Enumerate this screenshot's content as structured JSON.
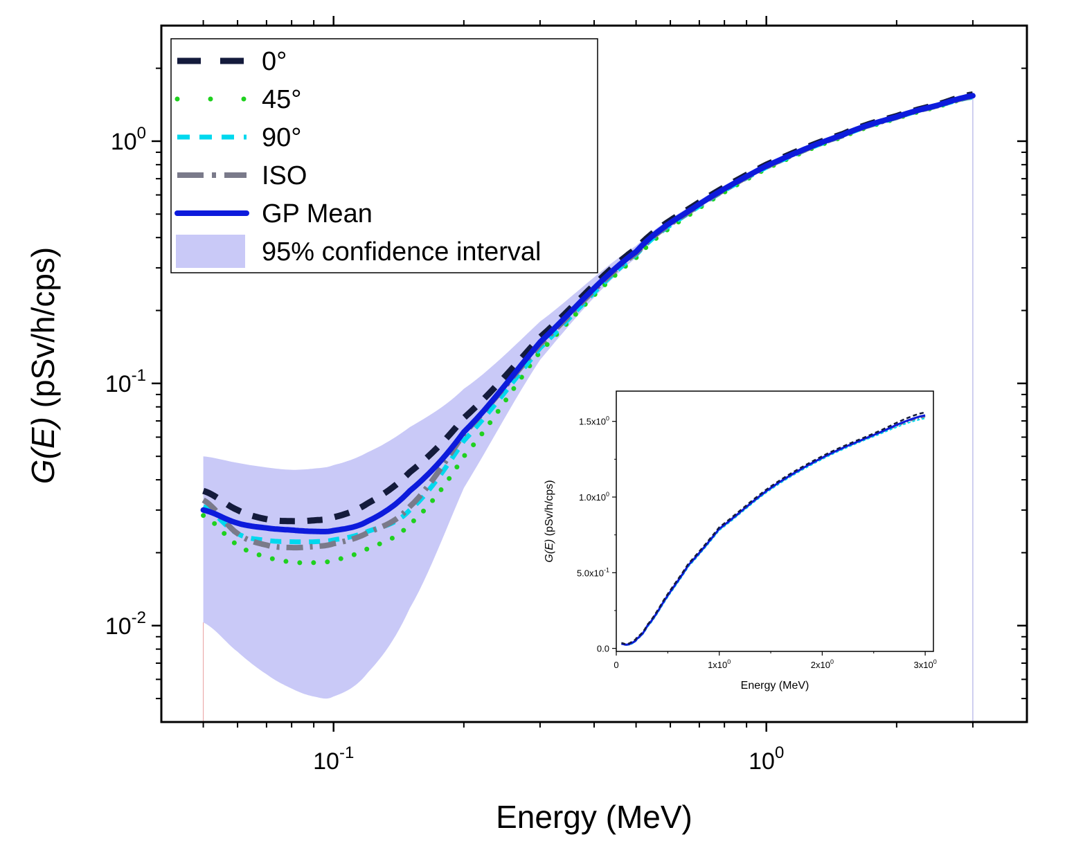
{
  "colors": {
    "deg0": "#141b3c",
    "deg45": "#1fd11f",
    "deg90": "#00d8ee",
    "iso": "#7a7a8a",
    "gp_mean": "#0d1bdc",
    "ci_fill": "#c9c9f7"
  },
  "chart_data": [
    {
      "type": "line",
      "xscale": "log",
      "yscale": "log",
      "xlabel": "Energy (MeV)",
      "ylabel": "G(E) (pSv/h/cps)",
      "ylabel_italic": "G(E)",
      "ylabel_unit": " (pSv/h/cps)",
      "xlim": [
        0.04,
        4.0
      ],
      "ylim": [
        0.004,
        3.0
      ],
      "x_major_ticks": [
        {
          "value": 0.1,
          "base": "10",
          "exp": "-1"
        },
        {
          "value": 1.0,
          "base": "10",
          "exp": "0"
        }
      ],
      "y_major_ticks": [
        {
          "value": 0.01,
          "base": "10",
          "exp": "-2"
        },
        {
          "value": 0.1,
          "base": "10",
          "exp": "-1"
        },
        {
          "value": 1.0,
          "base": "10",
          "exp": "0"
        }
      ],
      "legend_position": "top-left",
      "series": [
        {
          "key": "deg0",
          "name": "0°",
          "style": "dash",
          "x": [
            0.05,
            0.06,
            0.07,
            0.08,
            0.09,
            0.1,
            0.12,
            0.15,
            0.2,
            0.3,
            0.5,
            0.7,
            1.0,
            1.5,
            2.0,
            2.5,
            3.0
          ],
          "y": [
            0.036,
            0.03,
            0.0275,
            0.027,
            0.0272,
            0.028,
            0.032,
            0.043,
            0.072,
            0.155,
            0.36,
            0.56,
            0.8,
            1.07,
            1.27,
            1.42,
            1.56
          ]
        },
        {
          "key": "deg45",
          "name": "45°",
          "style": "dot",
          "x": [
            0.05,
            0.06,
            0.07,
            0.08,
            0.09,
            0.1,
            0.12,
            0.15,
            0.2,
            0.3,
            0.5,
            0.7,
            1.0,
            1.5,
            2.0,
            2.5,
            3.0
          ],
          "y": [
            0.0285,
            0.0215,
            0.0192,
            0.0183,
            0.0182,
            0.0186,
            0.0208,
            0.0262,
            0.05,
            0.135,
            0.33,
            0.53,
            0.77,
            1.04,
            1.24,
            1.39,
            1.52
          ]
        },
        {
          "key": "deg90",
          "name": "90°",
          "style": "shortdash",
          "x": [
            0.05,
            0.06,
            0.07,
            0.08,
            0.09,
            0.1,
            0.12,
            0.15,
            0.2,
            0.3,
            0.5,
            0.7,
            1.0,
            1.5,
            2.0,
            2.5,
            3.0
          ],
          "y": [
            0.031,
            0.024,
            0.0225,
            0.0222,
            0.0222,
            0.0226,
            0.0245,
            0.03,
            0.058,
            0.14,
            0.34,
            0.54,
            0.78,
            1.05,
            1.25,
            1.4,
            1.52
          ]
        },
        {
          "key": "iso",
          "name": "ISO",
          "style": "dashdot",
          "x": [
            0.05,
            0.06,
            0.07,
            0.08,
            0.09,
            0.1,
            0.12,
            0.15,
            0.2,
            0.3,
            0.5,
            0.7,
            1.0,
            1.5,
            2.0,
            2.5,
            3.0
          ],
          "y": [
            0.033,
            0.024,
            0.0215,
            0.021,
            0.0212,
            0.0218,
            0.0242,
            0.031,
            0.062,
            0.145,
            0.345,
            0.545,
            0.785,
            1.055,
            1.255,
            1.405,
            1.53
          ]
        },
        {
          "key": "gp_mean",
          "name": "GP Mean",
          "style": "solid",
          "x": [
            0.05,
            0.06,
            0.07,
            0.08,
            0.09,
            0.1,
            0.12,
            0.15,
            0.2,
            0.3,
            0.5,
            0.7,
            1.0,
            1.5,
            2.0,
            2.5,
            3.0
          ],
          "y": [
            0.03,
            0.0265,
            0.0253,
            0.0248,
            0.0245,
            0.0247,
            0.027,
            0.036,
            0.063,
            0.148,
            0.35,
            0.55,
            0.79,
            1.06,
            1.26,
            1.41,
            1.54
          ]
        },
        {
          "key": "ci",
          "name": "95% confidence interval",
          "style": "band",
          "x": [
            0.05,
            0.06,
            0.07,
            0.08,
            0.09,
            0.1,
            0.12,
            0.15,
            0.2,
            0.3,
            0.5,
            0.7,
            1.0,
            1.5,
            2.0,
            2.5,
            3.0
          ],
          "y_lower": [
            0.0103,
            0.0078,
            0.0063,
            0.0055,
            0.0051,
            0.0051,
            0.0064,
            0.0118,
            0.037,
            0.125,
            0.33,
            0.53,
            0.77,
            1.04,
            1.24,
            1.39,
            1.52
          ],
          "y_upper": [
            0.05,
            0.047,
            0.045,
            0.044,
            0.0445,
            0.046,
            0.052,
            0.066,
            0.095,
            0.18,
            0.37,
            0.57,
            0.81,
            1.08,
            1.28,
            1.43,
            1.56
          ]
        }
      ]
    },
    {
      "type": "line",
      "xscale": "linear",
      "yscale": "linear",
      "xlabel": "Energy (MeV)",
      "ylabel_italic": "G(E)",
      "ylabel_unit": " (pSv/h/cps)",
      "xlim": [
        0.0,
        3.08
      ],
      "ylim": [
        -0.02,
        1.7
      ],
      "x_tick_labels": [
        {
          "value": 0,
          "base": "0",
          "exp": ""
        },
        {
          "value": 1,
          "base": "1x10",
          "exp": "0"
        },
        {
          "value": 2,
          "base": "2x10",
          "exp": "0"
        },
        {
          "value": 3,
          "base": "3x10",
          "exp": "0"
        }
      ],
      "y_tick_labels": [
        {
          "value": 0.0,
          "base": "0.0",
          "exp": ""
        },
        {
          "value": 0.5,
          "base": "5.0x10",
          "exp": "-1"
        },
        {
          "value": 1.0,
          "base": "1.0x10",
          "exp": "0"
        },
        {
          "value": 1.5,
          "base": "1.5x10",
          "exp": "0"
        }
      ],
      "series": [
        {
          "key": "deg0",
          "name": "0°",
          "style": "dash",
          "x": [
            0.05,
            0.1,
            0.15,
            0.2,
            0.3,
            0.5,
            0.7,
            1.0,
            1.5,
            2.0,
            2.5,
            3.0
          ],
          "y": [
            0.036,
            0.028,
            0.043,
            0.072,
            0.155,
            0.36,
            0.56,
            0.8,
            1.07,
            1.27,
            1.42,
            1.56
          ]
        },
        {
          "key": "gp_mean",
          "name": "GP Mean",
          "style": "solid",
          "x": [
            0.05,
            0.1,
            0.15,
            0.2,
            0.3,
            0.5,
            0.7,
            1.0,
            1.5,
            2.0,
            2.5,
            3.0
          ],
          "y": [
            0.03,
            0.0247,
            0.036,
            0.063,
            0.148,
            0.35,
            0.55,
            0.79,
            1.06,
            1.26,
            1.41,
            1.54
          ]
        },
        {
          "key": "deg90",
          "name": "90°",
          "style": "shortdash",
          "x": [
            0.05,
            0.1,
            0.15,
            0.2,
            0.3,
            0.5,
            0.7,
            1.0,
            1.5,
            2.0,
            2.5,
            3.0
          ],
          "y": [
            0.031,
            0.0226,
            0.03,
            0.058,
            0.14,
            0.34,
            0.54,
            0.78,
            1.05,
            1.25,
            1.4,
            1.52
          ]
        },
        {
          "key": "iso",
          "name": "ISO",
          "style": "dashdot",
          "x": [
            0.05,
            0.1,
            0.15,
            0.2,
            0.3,
            0.5,
            0.7,
            1.0,
            1.5,
            2.0,
            2.5,
            3.0
          ],
          "y": [
            0.033,
            0.0218,
            0.031,
            0.062,
            0.145,
            0.345,
            0.545,
            0.785,
            1.055,
            1.255,
            1.405,
            1.53
          ]
        }
      ]
    }
  ]
}
